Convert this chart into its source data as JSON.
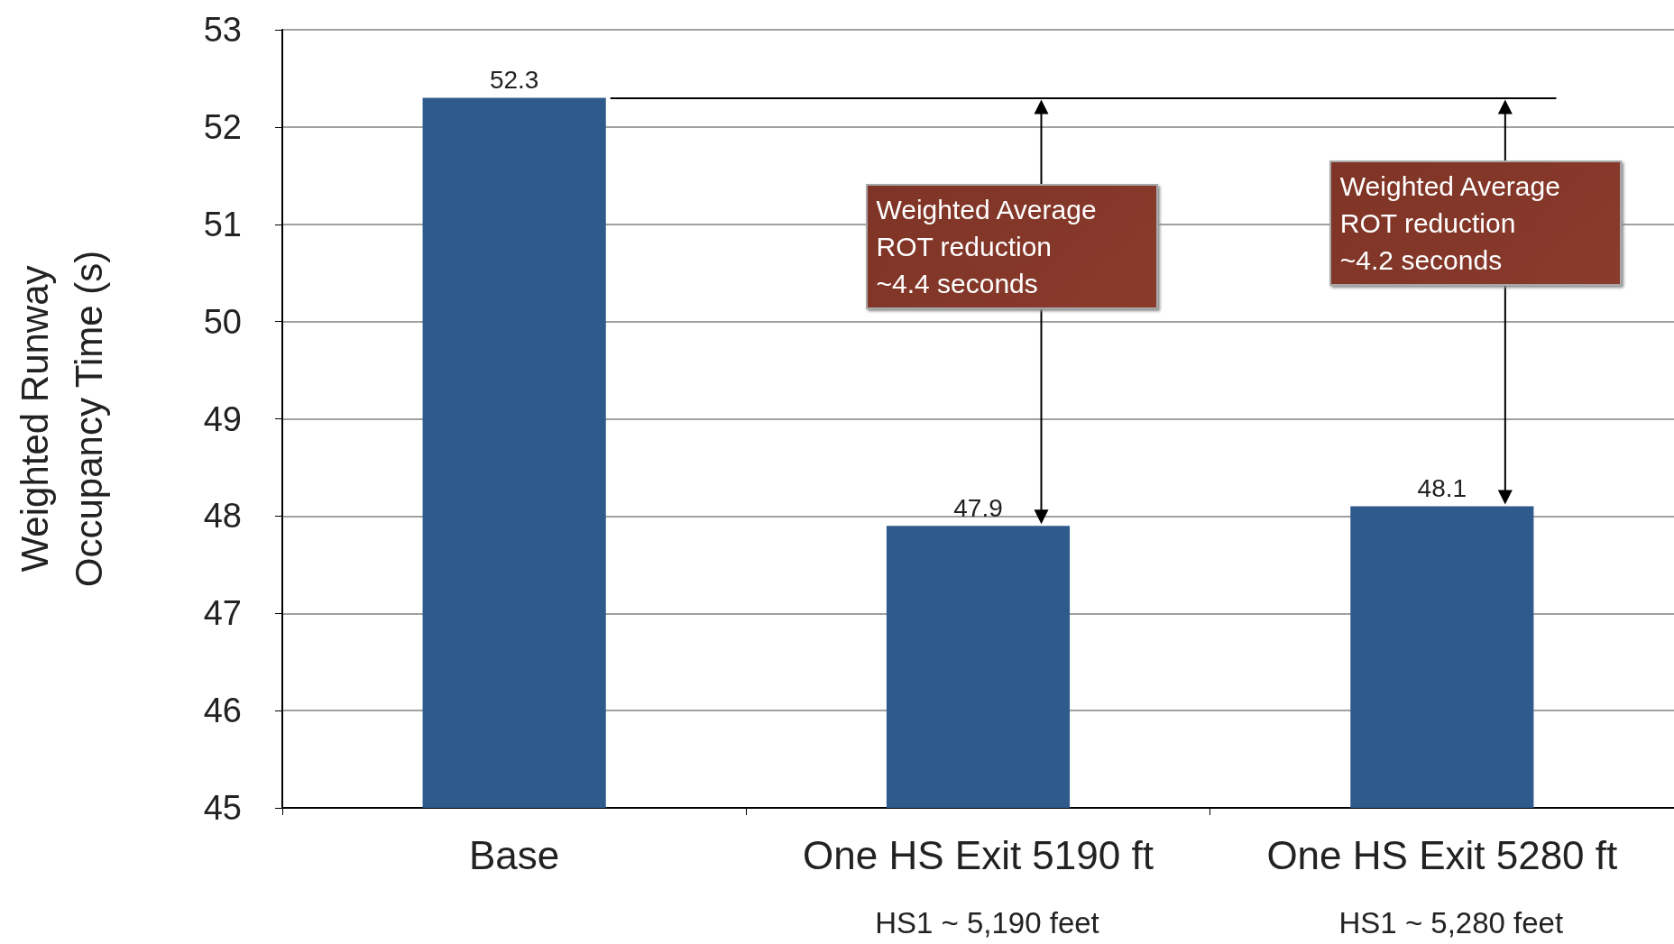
{
  "chart_data": {
    "type": "bar",
    "categories": [
      "Base",
      "One HS Exit 5190 ft",
      "One HS Exit 5280 ft"
    ],
    "values": [
      52.3,
      47.9,
      48.1
    ],
    "color": "#2e5a8c",
    "ylabel": "Weighted Runway\nOccupancy Time (s)",
    "ylim": [
      45,
      53
    ],
    "yticks": [
      45,
      46,
      47,
      48,
      49,
      50,
      51,
      52,
      53
    ],
    "grid": "y",
    "data_labels": true,
    "ref_lines": [
      {
        "axis": "y",
        "value": 52.3,
        "label": null,
        "color": "#000000"
      }
    ],
    "annotations": [
      "Weighted Average\nROT reduction\n~4.4 seconds",
      "Weighted Average\nROT reduction\n~4.2 seconds",
      "HS1 ~ 5,190 feet",
      "HS1 ~ 5,280 feet"
    ]
  }
}
